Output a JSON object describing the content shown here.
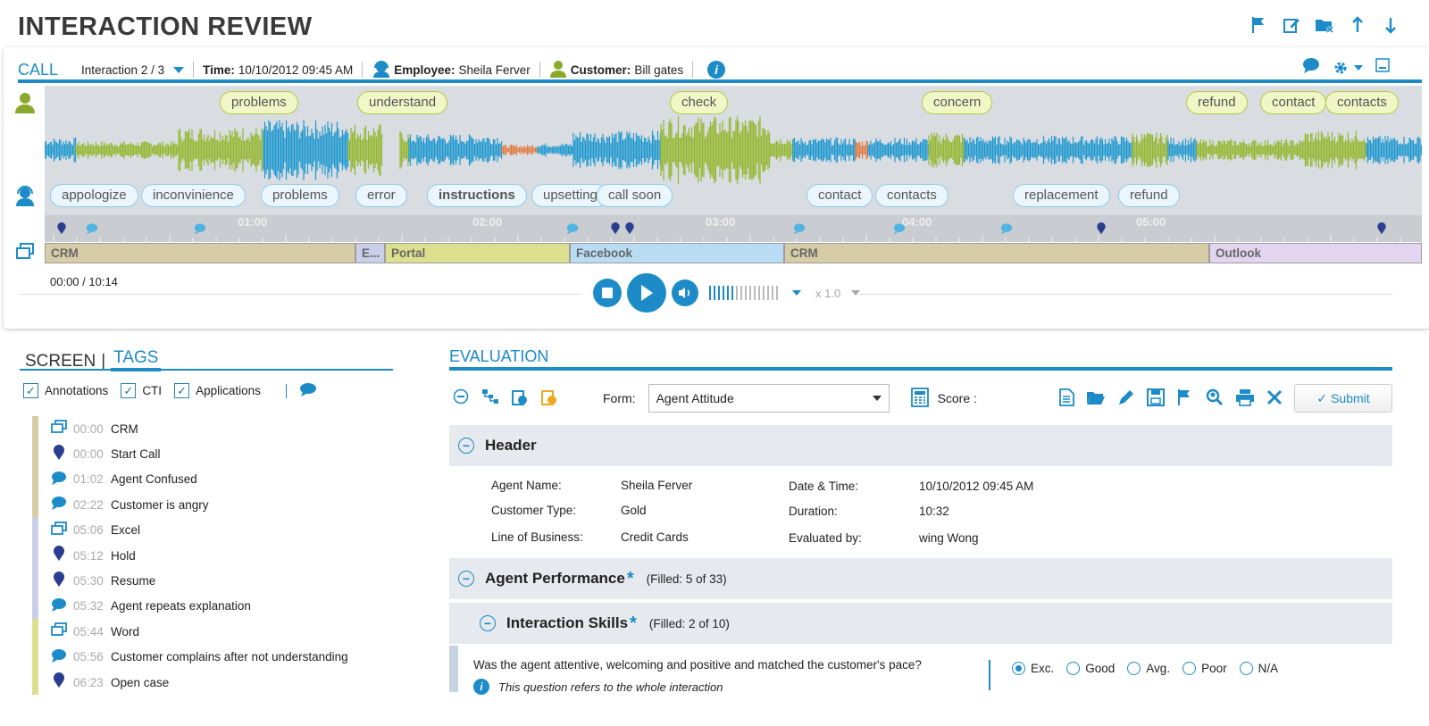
{
  "page": {
    "title": "INTERACTION REVIEW"
  },
  "top_icons": [
    "flag-icon",
    "edit-icon",
    "folder-close-icon",
    "arrow-up-icon",
    "arrow-down-icon"
  ],
  "call_bar": {
    "label": "CALL",
    "interaction": "Interaction 2 / 3",
    "time_label": "Time:",
    "time_value": "10/10/2012 09:45 AM",
    "employee_label": "Employee:",
    "employee_value": "Sheila Ferver",
    "customer_label": "Customer:",
    "customer_value": "Bill gates"
  },
  "waveform": {
    "agent_bubbles": [
      "problems",
      "understand",
      "check",
      "concern",
      "refund",
      "contact",
      "contacts"
    ],
    "customer_bubbles": [
      "appologize",
      "inconvinience",
      "problems",
      "error",
      "instructions",
      "upsetting",
      "call soon",
      "contact",
      "contacts",
      "replacement",
      "refund"
    ]
  },
  "timeline": {
    "ticks": [
      "01:00",
      "02:00",
      "03:00",
      "04:00",
      "05:00"
    ]
  },
  "apps": [
    {
      "name": "CRM",
      "color": "#d6cca6"
    },
    {
      "name": "E...",
      "color": "#c9cfe8"
    },
    {
      "name": "Portal",
      "color": "#dcdf8e"
    },
    {
      "name": "Facebook",
      "color": "#b9dcf4"
    },
    {
      "name": "CRM",
      "color": "#d6cca6"
    },
    {
      "name": "Outlook",
      "color": "#e3d4ef"
    }
  ],
  "player": {
    "time": "00:00 / 10:14",
    "speed": "x 1.0",
    "volume_level": 0.4
  },
  "left_panel": {
    "tab_screen": "SCREEN",
    "tab_sep": "|",
    "tab_tags": "TAGS",
    "filters": [
      "Annotations",
      "CTI",
      "Applications"
    ],
    "tags": [
      {
        "icon": "window-icon",
        "time": "00:00",
        "name": "CRM"
      },
      {
        "icon": "pin-icon",
        "time": "00:00",
        "name": "Start Call"
      },
      {
        "icon": "comment-icon",
        "time": "01:02",
        "name": "Agent Confused"
      },
      {
        "icon": "comment-icon",
        "time": "02:22",
        "name": "Customer is angry"
      },
      {
        "icon": "window-icon",
        "time": "05:06",
        "name": "Excel"
      },
      {
        "icon": "pin-icon",
        "time": "05:12",
        "name": "Hold"
      },
      {
        "icon": "pin-icon",
        "time": "05:30",
        "name": "Resume"
      },
      {
        "icon": "comment-icon",
        "time": "05:32",
        "name": "Agent repeats explanation"
      },
      {
        "icon": "window-icon",
        "time": "05:44",
        "name": "Word"
      },
      {
        "icon": "comment-icon",
        "time": "05:56",
        "name": "Customer complains after not understanding"
      },
      {
        "icon": "pin-icon",
        "time": "06:23",
        "name": "Open case"
      }
    ]
  },
  "evaluation": {
    "title": "EVALUATION",
    "form_label": "Form:",
    "form_value": "Agent Attitude",
    "score_label": "Score :",
    "submit_label": "Submit",
    "header_section": "Header",
    "fields": {
      "agent_name_label": "Agent Name:",
      "agent_name": "Sheila Ferver",
      "customer_type_label": "Customer Type:",
      "customer_type": "Gold",
      "lob_label": "Line of Business:",
      "lob": "Credit Cards",
      "datetime_label": "Date & Time:",
      "datetime": "10/10/2012 09:45 AM",
      "duration_label": "Duration:",
      "duration": "10:32",
      "evaluated_by_label": "Evaluated by:",
      "evaluated_by": "wing Wong"
    },
    "agent_performance": {
      "title": "Agent Performance",
      "filled": "(Filled: 5 of 33)"
    },
    "interaction_skills": {
      "title": "Interaction Skills",
      "filled": "(Filled: 2 of 10)"
    },
    "question": {
      "text": "Was the agent attentive, welcoming and positive and matched the customer's pace?",
      "note": "This question refers to the whole interaction",
      "options": [
        "Exc.",
        "Good",
        "Avg.",
        "Poor",
        "N/A"
      ],
      "selected": "Exc."
    }
  }
}
